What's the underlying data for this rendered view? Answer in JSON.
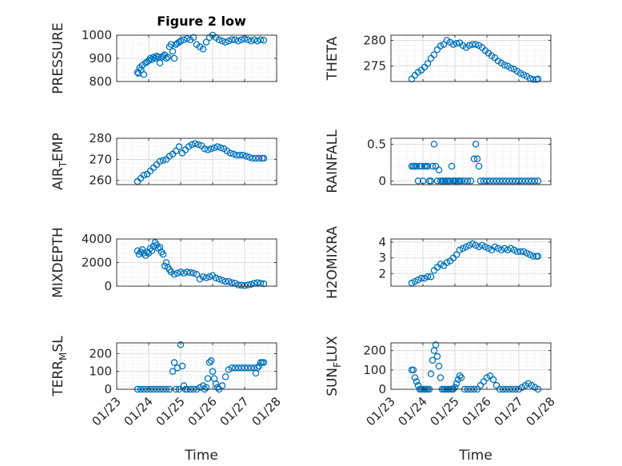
{
  "title": "Figure 2 low",
  "xlabel": "Time",
  "colors": {
    "marker": "#0072BD",
    "axis": "#262626",
    "grid": "#dddddd"
  },
  "date_ticks": [
    "01/23",
    "01/24",
    "01/25",
    "01/26",
    "01/27",
    "01/28"
  ],
  "chart_data": [
    {
      "type": "scatter",
      "ylabel": "PRESSURE",
      "ylim": [
        800,
        1000
      ],
      "yticks": [
        800,
        900,
        1000
      ],
      "x": [
        23.65,
        23.68,
        23.72,
        23.76,
        23.8,
        23.85,
        23.9,
        23.95,
        24,
        24.05,
        24.1,
        24.15,
        24.2,
        24.25,
        24.3,
        24.35,
        24.4,
        24.45,
        24.5,
        24.55,
        24.6,
        24.65,
        24.7,
        24.75,
        24.8,
        24.85,
        24.9,
        24.95,
        25,
        25.1,
        25.2,
        25.3,
        25.4,
        25.5,
        25.6,
        25.7,
        25.8,
        25.9,
        26,
        26.1,
        26.2,
        26.3,
        26.4,
        26.5,
        26.6,
        26.7,
        26.8,
        26.9,
        27,
        27.1,
        27.2,
        27.3,
        27.4,
        27.5,
        27.6
      ],
      "y": [
        840,
        835,
        860,
        850,
        870,
        830,
        880,
        885,
        890,
        900,
        895,
        905,
        900,
        910,
        905,
        880,
        905,
        910,
        915,
        900,
        905,
        950,
        960,
        930,
        900,
        960,
        965,
        970,
        975,
        980,
        985,
        980,
        990,
        960,
        950,
        940,
        970,
        990,
        1000,
        990,
        980,
        975,
        970,
        975,
        980,
        980,
        975,
        980,
        985,
        980,
        975,
        980,
        975,
        980,
        978
      ]
    },
    {
      "type": "scatter",
      "ylabel": "THETA",
      "ylim": [
        272,
        281
      ],
      "yticks": [
        275,
        280
      ],
      "x": [
        23.65,
        23.75,
        23.85,
        23.95,
        24.05,
        24.15,
        24.25,
        24.35,
        24.45,
        24.55,
        24.65,
        24.75,
        24.85,
        24.95,
        25.05,
        25.15,
        25.25,
        25.35,
        25.45,
        25.55,
        25.65,
        25.75,
        25.85,
        25.95,
        26.05,
        26.15,
        26.25,
        26.35,
        26.45,
        26.55,
        26.65,
        26.75,
        26.85,
        26.95,
        27.05,
        27.15,
        27.25,
        27.35,
        27.45,
        27.55,
        27.6
      ],
      "y": [
        272.5,
        273.2,
        273.8,
        274.2,
        274.8,
        275.5,
        276.5,
        277.2,
        278.2,
        278.9,
        279.2,
        280.0,
        279.6,
        279.2,
        279.4,
        279.5,
        279.0,
        278.6,
        279.0,
        279.2,
        279.2,
        279.0,
        278.6,
        278.0,
        277.5,
        277.0,
        276.6,
        276.0,
        275.6,
        275.2,
        275.0,
        274.6,
        274.4,
        274.0,
        273.6,
        273.3,
        273.0,
        272.6,
        272.4,
        272.4,
        272.5
      ]
    },
    {
      "type": "scatter",
      "ylabel": "AIR_TEMP",
      "ylim": [
        258,
        280
      ],
      "yticks": [
        260,
        270,
        280
      ],
      "x": [
        23.65,
        23.75,
        23.85,
        23.95,
        24.05,
        24.15,
        24.25,
        24.35,
        24.45,
        24.55,
        24.65,
        24.75,
        24.85,
        24.95,
        25.05,
        25.15,
        25.25,
        25.35,
        25.45,
        25.55,
        25.65,
        25.75,
        25.85,
        25.95,
        26.05,
        26.15,
        26.25,
        26.35,
        26.45,
        26.55,
        26.65,
        26.75,
        26.85,
        26.95,
        27.05,
        27.15,
        27.25,
        27.35,
        27.45,
        27.55,
        27.6
      ],
      "y": [
        259.5,
        261,
        262.5,
        263,
        264.5,
        266,
        267.5,
        269,
        269.5,
        270,
        271.5,
        272.5,
        274,
        276,
        273,
        274.5,
        276,
        277,
        277.5,
        277,
        276.5,
        275,
        274.5,
        275,
        275.5,
        276,
        275.5,
        275,
        274,
        273,
        272.5,
        272,
        272,
        272,
        271.5,
        271,
        270.5,
        270.5,
        270.5,
        270.5,
        270.5
      ]
    },
    {
      "type": "scatter",
      "ylabel": "RAINFALL",
      "ylim": [
        -0.05,
        0.58
      ],
      "yticks": [
        0,
        0.5
      ],
      "x": [
        23.65,
        23.7,
        23.75,
        23.8,
        23.85,
        23.9,
        23.95,
        24.0,
        24.05,
        24.1,
        24.15,
        24.2,
        24.25,
        24.3,
        24.35,
        24.4,
        24.45,
        24.5,
        24.55,
        24.6,
        24.65,
        24.7,
        24.75,
        24.8,
        24.85,
        24.9,
        24.95,
        25.0,
        25.05,
        25.1,
        25.15,
        25.2,
        25.3,
        25.4,
        25.5,
        25.6,
        25.65,
        25.7,
        25.75,
        25.8,
        25.9,
        26.0,
        26.1,
        26.2,
        26.3,
        26.4,
        26.5,
        26.6,
        26.7,
        26.8,
        26.9,
        27.0,
        27.1,
        27.2,
        27.3,
        27.4,
        27.5,
        27.6
      ],
      "y": [
        0.2,
        0.2,
        0.2,
        0.2,
        0.0,
        0.2,
        0.2,
        0.0,
        0.2,
        0.2,
        0.2,
        0.0,
        0.0,
        0.2,
        0.5,
        0.2,
        0.0,
        0.15,
        0.0,
        0.0,
        0.0,
        0.0,
        0.0,
        0.0,
        0.0,
        0.2,
        0.0,
        0.0,
        0.0,
        0.0,
        0.0,
        0.0,
        0.0,
        0.0,
        0.0,
        0.3,
        0.5,
        0.3,
        0.2,
        0.0,
        0.0,
        0.0,
        0.0,
        0.0,
        0.0,
        0.0,
        0.0,
        0.0,
        0.0,
        0.0,
        0.0,
        0.0,
        0.0,
        0.0,
        0.0,
        0.0,
        0.0,
        0.0
      ]
    },
    {
      "type": "scatter",
      "ylabel": "MIXDEPTH",
      "ylim": [
        0,
        4000
      ],
      "yticks": [
        0,
        2000,
        4000
      ],
      "x": [
        23.65,
        23.7,
        23.75,
        23.8,
        23.85,
        23.9,
        23.95,
        24.0,
        24.05,
        24.1,
        24.15,
        24.2,
        24.25,
        24.3,
        24.35,
        24.4,
        24.45,
        24.5,
        24.55,
        24.6,
        24.65,
        24.7,
        24.8,
        24.9,
        25.0,
        25.1,
        25.2,
        25.3,
        25.4,
        25.5,
        25.6,
        25.7,
        25.8,
        25.9,
        26.0,
        26.1,
        26.2,
        26.3,
        26.4,
        26.5,
        26.6,
        26.7,
        26.8,
        26.9,
        27.0,
        27.1,
        27.2,
        27.3,
        27.4,
        27.5,
        27.6
      ],
      "y": [
        3000,
        2700,
        2900,
        3100,
        2800,
        2600,
        2900,
        2800,
        3200,
        3000,
        3400,
        3700,
        3500,
        3200,
        3300,
        2900,
        2700,
        1700,
        2000,
        1600,
        1400,
        1200,
        1000,
        1100,
        1200,
        1100,
        1200,
        1150,
        1100,
        1000,
        600,
        800,
        700,
        800,
        900,
        700,
        600,
        500,
        400,
        400,
        300,
        250,
        100,
        80,
        50,
        100,
        150,
        250,
        300,
        250,
        200
      ]
    },
    {
      "type": "scatter",
      "ylabel": "H2OMIXRA",
      "ylim": [
        1.2,
        4.2
      ],
      "yticks": [
        2,
        3,
        4
      ],
      "x": [
        23.65,
        23.75,
        23.85,
        23.95,
        24.05,
        24.15,
        24.25,
        24.35,
        24.45,
        24.55,
        24.65,
        24.75,
        24.85,
        24.95,
        25.05,
        25.15,
        25.25,
        25.35,
        25.45,
        25.55,
        25.65,
        25.75,
        25.85,
        25.95,
        26.05,
        26.15,
        26.25,
        26.35,
        26.45,
        26.55,
        26.65,
        26.75,
        26.85,
        26.95,
        27.05,
        27.15,
        27.25,
        27.35,
        27.45,
        27.55,
        27.6
      ],
      "y": [
        1.4,
        1.5,
        1.6,
        1.7,
        1.7,
        1.8,
        1.8,
        2.2,
        2.4,
        2.6,
        2.5,
        2.7,
        2.8,
        3.0,
        3.2,
        3.5,
        3.6,
        3.7,
        3.8,
        3.9,
        3.8,
        3.7,
        3.8,
        3.7,
        3.6,
        3.5,
        3.7,
        3.6,
        3.5,
        3.6,
        3.5,
        3.6,
        3.5,
        3.4,
        3.4,
        3.4,
        3.3,
        3.2,
        3.1,
        3.1,
        3.1
      ]
    },
    {
      "type": "scatter",
      "ylabel": "TERR_MSL",
      "ylim": [
        0,
        260
      ],
      "yticks": [
        0,
        100,
        200
      ],
      "x": [
        23.65,
        23.75,
        23.85,
        23.95,
        24.05,
        24.15,
        24.25,
        24.35,
        24.45,
        24.55,
        24.65,
        24.75,
        24.8,
        24.85,
        24.9,
        24.95,
        25.0,
        25.05,
        25.1,
        25.15,
        25.2,
        25.3,
        25.4,
        25.5,
        25.6,
        25.7,
        25.75,
        25.8,
        25.85,
        25.9,
        25.95,
        26.0,
        26.05,
        26.1,
        26.15,
        26.2,
        26.3,
        26.4,
        26.5,
        26.6,
        26.7,
        26.8,
        26.9,
        27.0,
        27.1,
        27.2,
        27.3,
        27.35,
        27.4,
        27.45,
        27.5,
        27.55,
        27.6
      ],
      "y": [
        0,
        0,
        0,
        0,
        0,
        0,
        0,
        0,
        0,
        0,
        0,
        100,
        150,
        0,
        120,
        0,
        250,
        130,
        20,
        0,
        0,
        0,
        0,
        0,
        10,
        20,
        0,
        10,
        60,
        150,
        160,
        100,
        60,
        30,
        10,
        0,
        20,
        70,
        110,
        120,
        120,
        120,
        120,
        120,
        120,
        120,
        120,
        90,
        120,
        130,
        150,
        150,
        150
      ]
    },
    {
      "type": "scatter",
      "ylabel": "SUN_FLUX",
      "ylim": [
        0,
        240
      ],
      "yticks": [
        0,
        100,
        200
      ],
      "x": [
        23.65,
        23.7,
        23.75,
        23.8,
        23.85,
        23.9,
        23.95,
        24.0,
        24.05,
        24.1,
        24.15,
        24.2,
        24.25,
        24.3,
        24.35,
        24.4,
        24.45,
        24.5,
        24.55,
        24.6,
        24.65,
        24.7,
        24.75,
        24.8,
        24.85,
        24.9,
        24.95,
        25.0,
        25.05,
        25.1,
        25.15,
        25.2,
        25.3,
        25.4,
        25.5,
        25.6,
        25.7,
        25.8,
        25.9,
        26.0,
        26.1,
        26.2,
        26.3,
        26.4,
        26.5,
        26.6,
        26.7,
        26.8,
        26.9,
        27.0,
        27.1,
        27.2,
        27.3,
        27.4,
        27.5,
        27.6
      ],
      "y": [
        100,
        100,
        60,
        40,
        20,
        0,
        0,
        0,
        0,
        0,
        0,
        0,
        80,
        150,
        200,
        230,
        170,
        120,
        60,
        0,
        0,
        0,
        0,
        0,
        0,
        0,
        0,
        10,
        30,
        50,
        70,
        60,
        0,
        0,
        0,
        0,
        0,
        20,
        40,
        60,
        70,
        50,
        20,
        0,
        0,
        0,
        0,
        0,
        0,
        0,
        10,
        20,
        30,
        20,
        10,
        0
      ]
    }
  ]
}
